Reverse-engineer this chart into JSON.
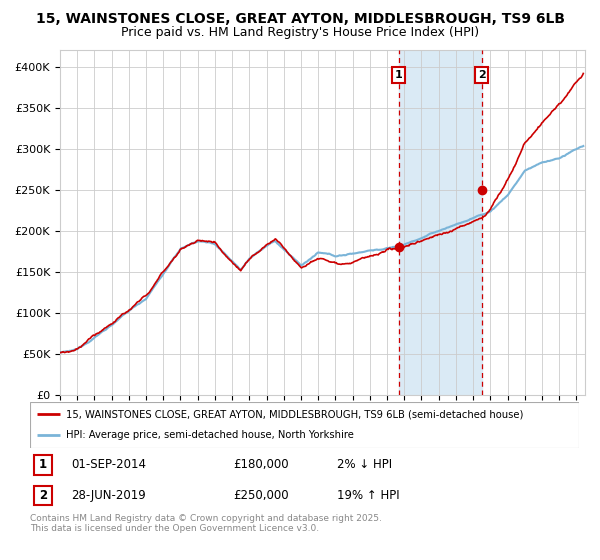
{
  "title1": "15, WAINSTONES CLOSE, GREAT AYTON, MIDDLESBROUGH, TS9 6LB",
  "title2": "Price paid vs. HM Land Registry's House Price Index (HPI)",
  "ylim": [
    0,
    420000
  ],
  "yticks": [
    0,
    50000,
    100000,
    150000,
    200000,
    250000,
    300000,
    350000,
    400000
  ],
  "ytick_labels": [
    "£0",
    "£50K",
    "£100K",
    "£150K",
    "£200K",
    "£250K",
    "£300K",
    "£350K",
    "£400K"
  ],
  "hpi_color": "#7ab4d8",
  "price_color": "#cc0000",
  "transaction1_year": 2014.667,
  "transaction1_price": 180000,
  "transaction1_label": "1",
  "transaction2_year": 2019.49,
  "transaction2_price": 250000,
  "transaction2_label": "2",
  "shade_color": "#daeaf5",
  "vline_color": "#cc0000",
  "grid_color": "#cccccc",
  "bg_color": "#ffffff",
  "legend_label_red": "15, WAINSTONES CLOSE, GREAT AYTON, MIDDLESBROUGH, TS9 6LB (semi-detached house)",
  "legend_label_blue": "HPI: Average price, semi-detached house, North Yorkshire",
  "table_row1": [
    "1",
    "01-SEP-2014",
    "£180,000",
    "2% ↓ HPI"
  ],
  "table_row2": [
    "2",
    "28-JUN-2019",
    "£250,000",
    "19% ↑ HPI"
  ],
  "footer": "Contains HM Land Registry data © Crown copyright and database right 2025.\nThis data is licensed under the Open Government Licence v3.0.",
  "title_fontsize": 10,
  "subtitle_fontsize": 9,
  "tick_fontsize": 8
}
